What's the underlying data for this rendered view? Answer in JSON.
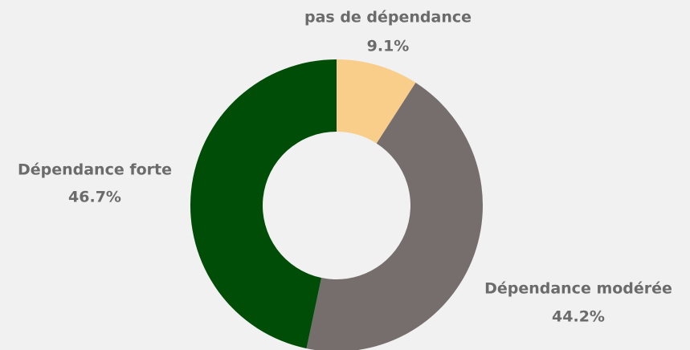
{
  "chart_data": {
    "type": "donut",
    "categories": [
      "pas de dépendance",
      "Dépendance modérée",
      "Dépendance forte"
    ],
    "values": [
      9.1,
      44.2,
      46.7
    ],
    "value_labels": [
      "9.1%",
      "44.2%",
      "46.7%"
    ],
    "colors": [
      "#f9ce8a",
      "#756e6d",
      "#004d07"
    ]
  }
}
